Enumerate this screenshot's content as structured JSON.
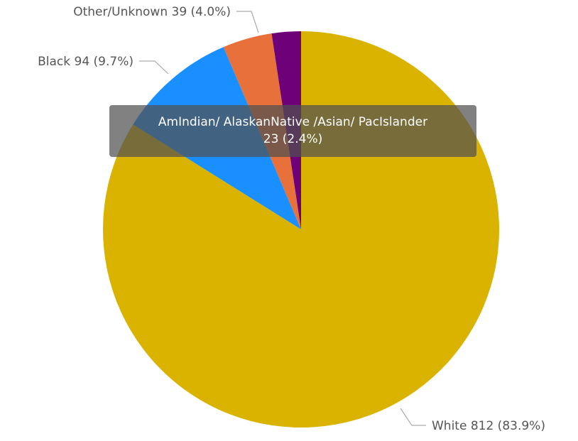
{
  "chart_data": {
    "type": "pie",
    "title": "",
    "categories": [
      "White",
      "Black",
      "Other/Unknown",
      "AmIndian/ AlaskanNative /Asian/ PacIslander"
    ],
    "values": [
      812,
      94,
      39,
      23
    ],
    "labels": [
      "White 812 (83.9%)",
      "Black 94 (9.7%)",
      "Other/Unknown 39 (4.0%)",
      ""
    ],
    "colors": [
      "#DAB300",
      "#1A8FFF",
      "#E8703A",
      "#6E0078"
    ],
    "legend": "none",
    "tooltip": {
      "name": "AmIndian/ AlaskanNative /Asian/ PacIslander",
      "value": "23 (2.4%)"
    }
  }
}
